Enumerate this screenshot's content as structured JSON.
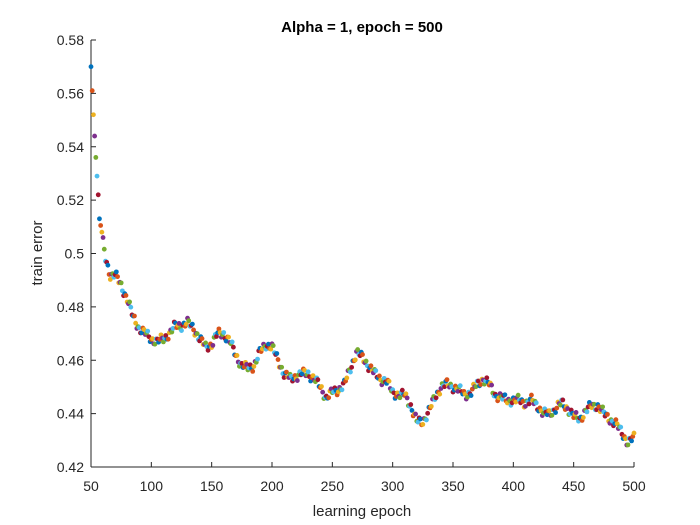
{
  "chart_data": {
    "type": "scatter",
    "title": "Alpha = 1, epoch = 500",
    "xlabel": "learning epoch",
    "ylabel": "train error",
    "xlim": [
      50,
      500
    ],
    "ylim": [
      0.42,
      0.58
    ],
    "xticks": [
      "50",
      "100",
      "150",
      "200",
      "250",
      "300",
      "350",
      "400",
      "450",
      "500"
    ],
    "yticks": [
      "0.42",
      "0.44",
      "0.46",
      "0.48",
      "0.5",
      "0.52",
      "0.54",
      "0.56",
      "0.58"
    ],
    "grid": false,
    "legend": "none",
    "colors": [
      "#0072BD",
      "#D95319",
      "#EDB120",
      "#7E2F8E",
      "#77AC30",
      "#4DBEEE",
      "#A2142F"
    ],
    "anchors": [
      [
        50,
        0.57
      ],
      [
        52,
        0.552
      ],
      [
        53,
        0.544
      ],
      [
        54,
        0.536
      ],
      [
        55,
        0.529
      ],
      [
        56,
        0.522
      ],
      [
        57,
        0.513
      ],
      [
        59,
        0.508
      ],
      [
        60,
        0.504
      ],
      [
        62,
        0.498
      ],
      [
        64,
        0.495
      ],
      [
        66,
        0.492
      ],
      [
        70,
        0.492
      ],
      [
        75,
        0.488
      ],
      [
        80,
        0.483
      ],
      [
        85,
        0.476
      ],
      [
        90,
        0.472
      ],
      [
        95,
        0.47
      ],
      [
        100,
        0.468
      ],
      [
        105,
        0.467
      ],
      [
        110,
        0.468
      ],
      [
        115,
        0.47
      ],
      [
        120,
        0.473
      ],
      [
        125,
        0.473
      ],
      [
        130,
        0.474
      ],
      [
        135,
        0.472
      ],
      [
        140,
        0.468
      ],
      [
        145,
        0.465
      ],
      [
        150,
        0.466
      ],
      [
        155,
        0.47
      ],
      [
        160,
        0.47
      ],
      [
        165,
        0.467
      ],
      [
        170,
        0.462
      ],
      [
        175,
        0.458
      ],
      [
        180,
        0.457
      ],
      [
        185,
        0.458
      ],
      [
        190,
        0.463
      ],
      [
        195,
        0.466
      ],
      [
        200,
        0.465
      ],
      [
        205,
        0.46
      ],
      [
        210,
        0.455
      ],
      [
        215,
        0.453
      ],
      [
        220,
        0.454
      ],
      [
        225,
        0.455
      ],
      [
        230,
        0.455
      ],
      [
        235,
        0.453
      ],
      [
        240,
        0.45
      ],
      [
        245,
        0.446
      ],
      [
        250,
        0.448
      ],
      [
        255,
        0.449
      ],
      [
        260,
        0.451
      ],
      [
        265,
        0.457
      ],
      [
        270,
        0.463
      ],
      [
        275,
        0.461
      ],
      [
        280,
        0.458
      ],
      [
        285,
        0.455
      ],
      [
        290,
        0.453
      ],
      [
        295,
        0.452
      ],
      [
        300,
        0.448
      ],
      [
        305,
        0.447
      ],
      [
        310,
        0.447
      ],
      [
        315,
        0.443
      ],
      [
        320,
        0.437
      ],
      [
        325,
        0.437
      ],
      [
        330,
        0.441
      ],
      [
        335,
        0.446
      ],
      [
        340,
        0.45
      ],
      [
        345,
        0.451
      ],
      [
        350,
        0.45
      ],
      [
        355,
        0.449
      ],
      [
        360,
        0.447
      ],
      [
        365,
        0.448
      ],
      [
        370,
        0.451
      ],
      [
        375,
        0.453
      ],
      [
        380,
        0.451
      ],
      [
        385,
        0.447
      ],
      [
        390,
        0.446
      ],
      [
        395,
        0.445
      ],
      [
        400,
        0.445
      ],
      [
        405,
        0.445
      ],
      [
        410,
        0.444
      ],
      [
        415,
        0.445
      ],
      [
        420,
        0.443
      ],
      [
        425,
        0.44
      ],
      [
        430,
        0.44
      ],
      [
        435,
        0.442
      ],
      [
        440,
        0.444
      ],
      [
        445,
        0.442
      ],
      [
        450,
        0.439
      ],
      [
        455,
        0.438
      ],
      [
        460,
        0.441
      ],
      [
        465,
        0.443
      ],
      [
        470,
        0.443
      ],
      [
        475,
        0.44
      ],
      [
        480,
        0.438
      ],
      [
        485,
        0.436
      ],
      [
        490,
        0.433
      ],
      [
        495,
        0.429
      ],
      [
        500,
        0.431
      ]
    ]
  }
}
